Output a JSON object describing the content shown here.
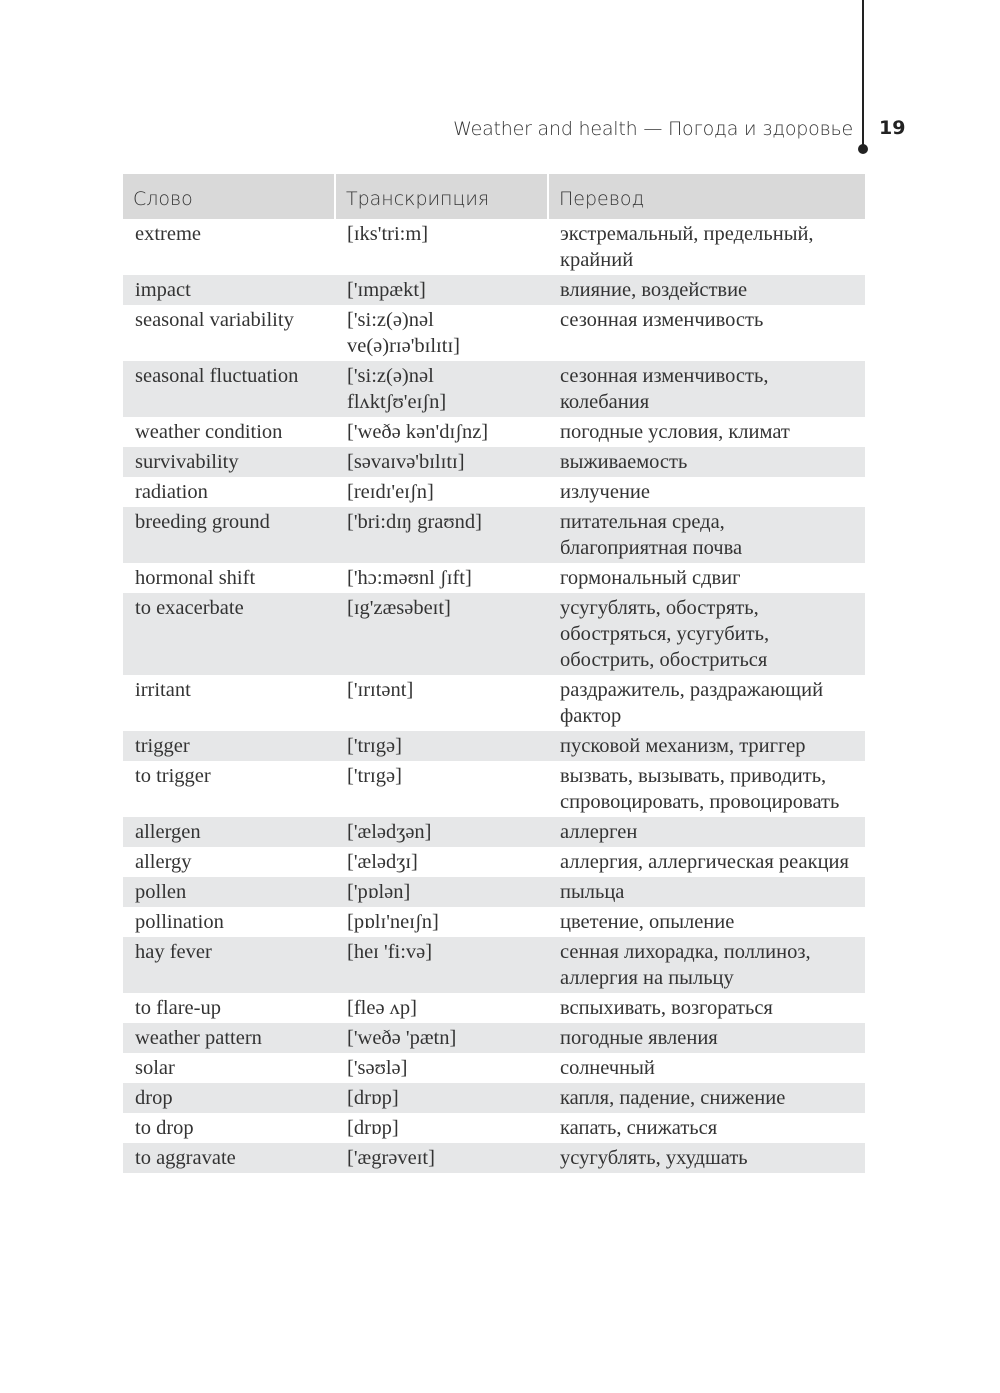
{
  "header": {
    "running_title": "Weather and health — Погода и здоровье",
    "page_number": "19"
  },
  "table": {
    "columns": [
      "Слово",
      "Транскрипция",
      "Перевод"
    ],
    "rows": [
      {
        "word": "extreme",
        "transcription": "[ɪks'tri:m]",
        "translation": "экстремальный, предельный, крайний"
      },
      {
        "word": "impact",
        "transcription": "['ɪmpækt]",
        "translation": "влияние, воздействие"
      },
      {
        "word": "seasonal variability",
        "transcription": "['si:z(ə)nəl ve(ə)rɪə'bɪlɪtɪ]",
        "translation": "сезонная изменчивость"
      },
      {
        "word": "seasonal fluctuation",
        "transcription": "['si:z(ə)nəl flʌktʃʊ'eɪʃn]",
        "translation": "сезонная изменчивость, колебания"
      },
      {
        "word": "weather condition",
        "transcription": "['weðə kən'dɪʃnz]",
        "translation": "погодные условия, климат"
      },
      {
        "word": "survivability",
        "transcription": "[səvaɪvə'bɪlɪtɪ]",
        "translation": "выживаемость"
      },
      {
        "word": "radiation",
        "transcription": "[reɪdɪ'eɪʃn]",
        "translation": "излучение"
      },
      {
        "word": "breeding ground",
        "transcription": "['bri:dɪŋ graʊnd]",
        "translation": "питательная среда, благоприятная почва"
      },
      {
        "word": "hormonal shift",
        "transcription": "['hɔ:məʊnl ʃɪft]",
        "translation": "гормональный сдвиг"
      },
      {
        "word": "to exacerbate",
        "transcription": "[ɪg'zæsəbeɪt]",
        "translation": "усугублять, обострять, обостряться, усугубить, обострить, обостриться"
      },
      {
        "word": "irritant",
        "transcription": "['ɪrɪtənt]",
        "translation": "раздражитель, раздражающий фактор"
      },
      {
        "word": "trigger",
        "transcription": "['trɪgə]",
        "translation": "пусковой механизм, триггер"
      },
      {
        "word": "to trigger",
        "transcription": "['trɪgə]",
        "translation": "вызвать, вызывать, приводить, спровоцировать, провоцировать"
      },
      {
        "word": "allergen",
        "transcription": "['ælədʒən]",
        "translation": "аллерген"
      },
      {
        "word": "allergy",
        "transcription": "['ælədʒɪ]",
        "translation": "аллергия, аллергическая реакция"
      },
      {
        "word": "pollen",
        "transcription": "['pɒlən]",
        "translation": "пыльца"
      },
      {
        "word": "pollination",
        "transcription": "[pɒlɪ'neɪʃn]",
        "translation": "цветение, опыление"
      },
      {
        "word": "hay fever",
        "transcription": "[heɪ 'fi:və]",
        "translation": "сенная лихорадка, поллиноз, аллергия на пыльцу"
      },
      {
        "word": "to flare-up",
        "transcription": "[fleə ʌp]",
        "translation": "вспыхивать, возгораться"
      },
      {
        "word": "weather pattern",
        "transcription": "['weðə 'pætn]",
        "translation": "погодные явления"
      },
      {
        "word": "solar",
        "transcription": "['səʊlə]",
        "translation": "солнечный"
      },
      {
        "word": "drop",
        "transcription": "[drɒp]",
        "translation": "капля, падение, снижение"
      },
      {
        "word": "to drop",
        "transcription": "[drɒp]",
        "translation": "капать, снижаться"
      },
      {
        "word": "to aggravate",
        "transcription": "['ægrəveɪt]",
        "translation": "усугублять, ухудшать"
      }
    ]
  }
}
